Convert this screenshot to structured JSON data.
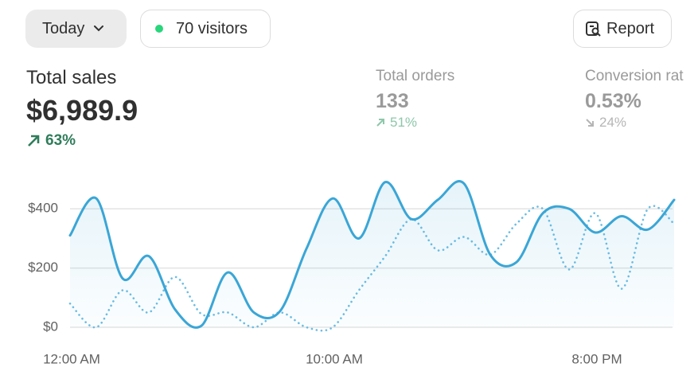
{
  "toolbar": {
    "date_button": "Today",
    "visitors": "70 visitors",
    "report_button": "Report"
  },
  "metrics": [
    {
      "label": "Total sales",
      "value": "$6,989.9",
      "change": "63%"
    },
    {
      "label": "Total orders",
      "value": "133",
      "change": "51%"
    },
    {
      "label": "Conversion rat",
      "value": "0.53%",
      "change": "24%"
    }
  ],
  "chart_data": {
    "type": "line",
    "categories": [
      "12:00 AM",
      null,
      null,
      null,
      null,
      null,
      null,
      null,
      null,
      null,
      "10:00 AM",
      null,
      null,
      null,
      null,
      null,
      null,
      null,
      null,
      null,
      "8:00 PM",
      null,
      null,
      null
    ],
    "series": [
      {
        "color": "#3aa6d6",
        "values": [
          310,
          435,
          165,
          240,
          60,
          5,
          185,
          50,
          55,
          265,
          435,
          300,
          490,
          365,
          430,
          485,
          245,
          220,
          385,
          400,
          320,
          375,
          330,
          430
        ]
      },
      {
        "color": "#6bbde3",
        "values": [
          80,
          0,
          125,
          50,
          170,
          45,
          50,
          0,
          50,
          0,
          0,
          125,
          240,
          365,
          260,
          305,
          245,
          350,
          400,
          195,
          385,
          130,
          400,
          350
        ]
      }
    ],
    "ylim": [
      0,
      500
    ],
    "yticks": [
      {
        "value": 0,
        "label": "$0"
      },
      {
        "value": 200,
        "label": "$200"
      },
      {
        "value": 400,
        "label": "$400"
      }
    ],
    "grid": true
  }
}
